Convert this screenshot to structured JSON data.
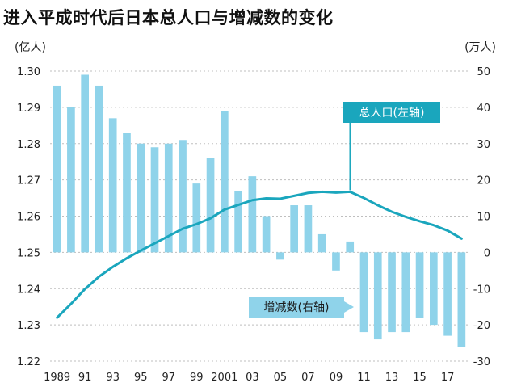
{
  "title": "进入平成时代后日本总人口与增减数的变化",
  "left_unit": "(亿人)",
  "right_unit": "(万人)",
  "colors": {
    "bar": "#8fd3ea",
    "line": "#1aa6bd",
    "callout_dark": "#1aa6bd",
    "callout_light": "#8fd3ea"
  },
  "chart_data": {
    "type": "bar+line",
    "title": "进入平成时代后日本总人口与增减数的变化",
    "x": [
      "1989",
      "90",
      "91",
      "92",
      "93",
      "94",
      "95",
      "96",
      "97",
      "98",
      "99",
      "2000",
      "2001",
      "02",
      "03",
      "04",
      "05",
      "06",
      "07",
      "08",
      "09",
      "10",
      "11",
      "12",
      "13",
      "14",
      "15",
      "16",
      "17",
      "18"
    ],
    "x_tick_labels": [
      "1989",
      "91",
      "93",
      "95",
      "97",
      "99",
      "2001",
      "03",
      "05",
      "07",
      "09",
      "11",
      "13",
      "15",
      "17"
    ],
    "left_axis": {
      "label": "(亿人)",
      "ylim": [
        1.22,
        1.3
      ],
      "ticks": [
        "1.22",
        "1.23",
        "1.24",
        "1.25",
        "1.26",
        "1.27",
        "1.28",
        "1.29",
        "1.30"
      ]
    },
    "right_axis": {
      "label": "(万人)",
      "ylim": [
        -30,
        50
      ],
      "ticks": [
        "-30",
        "-20",
        "-10",
        "0",
        "10",
        "20",
        "30",
        "40",
        "50"
      ]
    },
    "series": [
      {
        "name": "增减数(右轴)",
        "type": "bar",
        "axis": "right",
        "values": [
          46,
          40,
          49,
          46,
          37,
          33,
          30,
          29,
          30,
          31,
          19,
          26,
          39,
          17,
          21,
          10,
          -2,
          13,
          13,
          5,
          -5,
          3,
          -22,
          -24,
          -22,
          -22,
          -18,
          -20,
          -23,
          -26
        ]
      },
      {
        "name": "总人口(左轴)",
        "type": "line",
        "axis": "left",
        "values": [
          1.232,
          1.2358,
          1.2399,
          1.2433,
          1.246,
          1.2484,
          1.2505,
          1.2525,
          1.2545,
          1.2565,
          1.2578,
          1.2594,
          1.2618,
          1.2631,
          1.2644,
          1.2649,
          1.2648,
          1.2656,
          1.2664,
          1.2667,
          1.2665,
          1.2667,
          1.265,
          1.263,
          1.2612,
          1.2598,
          1.2586,
          1.2575,
          1.256,
          1.2538
        ]
      }
    ],
    "annotations": [
      {
        "text": "总人口(左轴)",
        "target": "line"
      },
      {
        "text": "增减数(右轴)",
        "target": "bar"
      }
    ],
    "grid": "horizontal dashed"
  }
}
